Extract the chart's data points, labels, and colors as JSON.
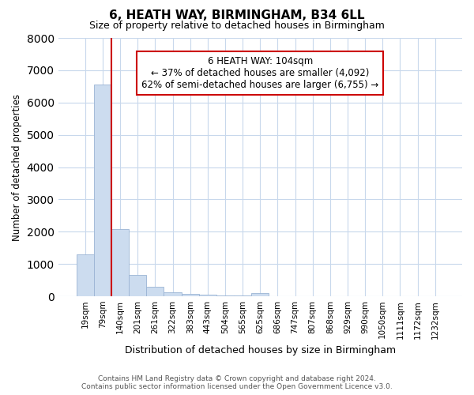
{
  "title": "6, HEATH WAY, BIRMINGHAM, B34 6LL",
  "subtitle": "Size of property relative to detached houses in Birmingham",
  "xlabel": "Distribution of detached houses by size in Birmingham",
  "ylabel": "Number of detached properties",
  "categories": [
    "19sqm",
    "79sqm",
    "140sqm",
    "201sqm",
    "261sqm",
    "322sqm",
    "383sqm",
    "443sqm",
    "504sqm",
    "565sqm",
    "625sqm",
    "686sqm",
    "747sqm",
    "807sqm",
    "868sqm",
    "929sqm",
    "990sqm",
    "1050sqm",
    "1111sqm",
    "1172sqm",
    "1232sqm"
  ],
  "values": [
    1300,
    6550,
    2080,
    650,
    300,
    130,
    75,
    50,
    30,
    15,
    100,
    0,
    0,
    0,
    0,
    0,
    0,
    0,
    0,
    0,
    0
  ],
  "bar_color": "#ccdcef",
  "bar_edge_color": "#9ab4d4",
  "property_line_x": 1.5,
  "property_line_color": "#cc0000",
  "annotation_text": "6 HEATH WAY: 104sqm\n← 37% of detached houses are smaller (4,092)\n62% of semi-detached houses are larger (6,755) →",
  "annotation_box_color": "#ffffff",
  "annotation_box_edge_color": "#cc0000",
  "ylim": [
    0,
    8000
  ],
  "yticks": [
    0,
    1000,
    2000,
    3000,
    4000,
    5000,
    6000,
    7000,
    8000
  ],
  "background_color": "#ffffff",
  "grid_color": "#c8d8ec",
  "footer_line1": "Contains HM Land Registry data © Crown copyright and database right 2024.",
  "footer_line2": "Contains public sector information licensed under the Open Government Licence v3.0."
}
